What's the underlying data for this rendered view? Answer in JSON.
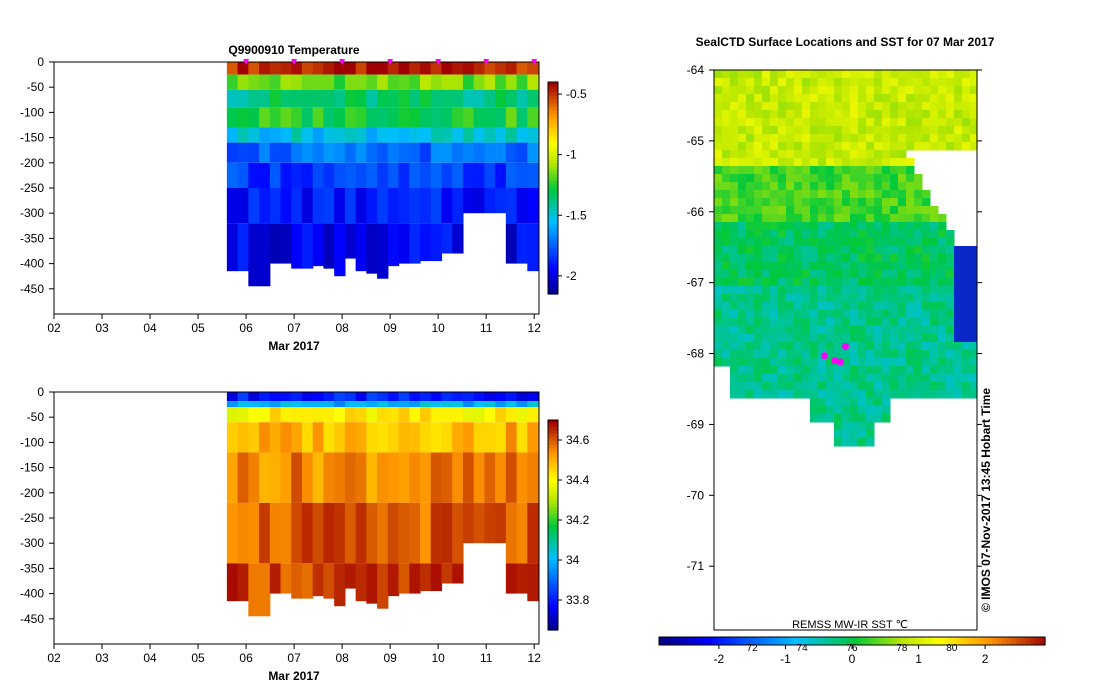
{
  "chart_data": [
    {
      "type": "heatmap",
      "title": "Q9900910  Temperature",
      "xlabel": "Mar 2017",
      "ylabel": "",
      "x_ticks": [
        "02",
        "03",
        "04",
        "05",
        "06",
        "07",
        "08",
        "09",
        "10",
        "11",
        "12"
      ],
      "xlim": [
        2,
        12.1
      ],
      "y_ticks": [
        0,
        -50,
        -100,
        -150,
        -200,
        -250,
        -300,
        -350,
        -400,
        -450
      ],
      "ylim": [
        -500,
        0
      ],
      "colorbar": {
        "min": -2.15,
        "max": -0.4,
        "ticks": [
          -0.5,
          -1,
          -1.5,
          -2
        ]
      },
      "profile_markers": [
        6,
        7,
        8,
        9,
        10,
        11,
        12
      ],
      "profile_start_day": 5.6,
      "profile_depths": [
        415,
        415,
        445,
        445,
        400,
        400,
        410,
        410,
        405,
        410,
        425,
        390,
        415,
        420,
        430,
        405,
        400,
        400,
        395,
        395,
        380,
        380,
        300,
        300,
        300,
        300,
        400,
        400,
        415
      ],
      "layers": [
        {
          "from": 0,
          "to": 25,
          "value": -0.45
        },
        {
          "from": 25,
          "to": 55,
          "value": -1.15
        },
        {
          "from": 55,
          "to": 90,
          "value": -1.35
        },
        {
          "from": 90,
          "to": 130,
          "value": -1.25
        },
        {
          "from": 130,
          "to": 160,
          "value": -1.5
        },
        {
          "from": 160,
          "to": 200,
          "value": -1.72
        },
        {
          "from": 200,
          "to": 250,
          "value": -1.82
        },
        {
          "from": 250,
          "to": 320,
          "value": -1.9
        },
        {
          "from": 320,
          "to": 460,
          "value": -1.96
        }
      ]
    },
    {
      "type": "heatmap",
      "title": "",
      "xlabel": "Mar 2017",
      "ylabel": "",
      "x_ticks": [
        "02",
        "03",
        "04",
        "05",
        "06",
        "07",
        "08",
        "09",
        "10",
        "11",
        "12"
      ],
      "xlim": [
        2,
        12.1
      ],
      "y_ticks": [
        0,
        -50,
        -100,
        -150,
        -200,
        -250,
        -300,
        -350,
        -400,
        -450
      ],
      "ylim": [
        -500,
        0
      ],
      "colorbar": {
        "min": 33.65,
        "max": 34.7,
        "ticks": [
          34.6,
          34.4,
          34.2,
          34,
          33.8
        ]
      },
      "profile_start_day": 5.6,
      "profile_depths": [
        415,
        415,
        445,
        445,
        400,
        400,
        410,
        410,
        405,
        410,
        425,
        390,
        415,
        420,
        430,
        405,
        400,
        400,
        395,
        395,
        380,
        380,
        300,
        300,
        300,
        300,
        400,
        400,
        415
      ],
      "layers": [
        {
          "from": 0,
          "to": 18,
          "value": 33.8
        },
        {
          "from": 18,
          "to": 30,
          "value": 34.0
        },
        {
          "from": 30,
          "to": 60,
          "value": 34.42
        },
        {
          "from": 60,
          "to": 120,
          "value": 34.5
        },
        {
          "from": 120,
          "to": 220,
          "value": 34.56
        },
        {
          "from": 220,
          "to": 340,
          "value": 34.6
        },
        {
          "from": 340,
          "to": 460,
          "value": 34.63
        }
      ]
    },
    {
      "type": "heatmap",
      "title": "SealCTD Surface Locations and SST for 07 Mar 2017",
      "xlabel": "",
      "ylabel": "",
      "y_ticks": [
        -64,
        -65,
        -66,
        -67,
        -68,
        -69,
        -70,
        -71
      ],
      "ylim": [
        -71.9,
        -64
      ],
      "caption": "REMSS MW-IR SST ℃",
      "side_label": "© IMOS 07-Nov-2017 13:45 Hobart Time",
      "colorbar": {
        "min": -2.9,
        "max": 2.9,
        "ticks_c": [
          -2,
          -1,
          0,
          1,
          2
        ],
        "ticks_f": [
          72,
          74,
          76,
          78,
          80
        ]
      },
      "sst_bands": [
        {
          "lat_top": -64,
          "lat_bottom": -65.4,
          "value": 0.85
        },
        {
          "lat_top": -65.4,
          "lat_bottom": -66.2,
          "value": 0.25
        },
        {
          "lat_top": -66.2,
          "lat_bottom": -67.1,
          "value": -0.15
        },
        {
          "lat_top": -67.1,
          "lat_bottom": -69.3,
          "value": -0.35
        }
      ],
      "seal_locations": [
        {
          "lat": -68.03,
          "rel_x": 0.42
        },
        {
          "lat": -68.1,
          "rel_x": 0.46
        },
        {
          "lat": -68.12,
          "rel_x": 0.48
        },
        {
          "lat": -67.9,
          "rel_x": 0.5
        }
      ]
    }
  ]
}
